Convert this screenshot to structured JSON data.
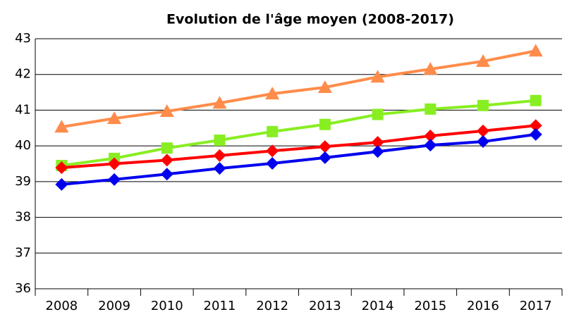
{
  "chart_data": {
    "type": "line",
    "title": "Evolution de l'âge moyen (2008-2017)",
    "categories": [
      "2008",
      "2009",
      "2010",
      "2011",
      "2012",
      "2013",
      "2014",
      "2015",
      "2016",
      "2017"
    ],
    "series": [
      {
        "color": "#ff8c4a",
        "marker": "triangle",
        "values": [
          40.53,
          40.77,
          40.97,
          41.2,
          41.46,
          41.64,
          41.93,
          42.15,
          42.37,
          42.66
        ]
      },
      {
        "color": "#88ee22",
        "marker": "square",
        "values": [
          39.45,
          39.65,
          39.94,
          40.16,
          40.4,
          40.6,
          40.88,
          41.03,
          41.13,
          41.27
        ]
      },
      {
        "color": "#ff0000",
        "marker": "diamond",
        "values": [
          39.39,
          39.5,
          39.6,
          39.73,
          39.86,
          39.98,
          40.1,
          40.28,
          40.42,
          40.57
        ]
      },
      {
        "color": "#0000ee",
        "marker": "diamond",
        "values": [
          38.92,
          39.06,
          39.21,
          39.37,
          39.51,
          39.67,
          39.84,
          40.02,
          40.12,
          40.32
        ]
      }
    ],
    "ylim": [
      36,
      43
    ],
    "yticks": [
      36,
      37,
      38,
      39,
      40,
      41,
      42,
      43
    ],
    "grid": true
  }
}
